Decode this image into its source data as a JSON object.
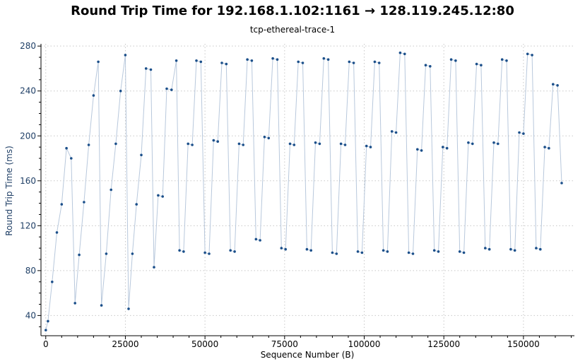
{
  "colors": {
    "points": "#1b4f8a",
    "line": "#b8c8dc",
    "ylabel": "#1f3f66"
  },
  "chart_data": {
    "type": "scatter",
    "title": "Round Trip Time for 192.168.1.102:1161 → 128.119.245.12:80",
    "subtitle": "tcp-ethereal-trace-1",
    "xlabel": "Sequence Number (B)",
    "ylabel": "Round Trip Time (ms)",
    "xlim": [
      -1500,
      166000
    ],
    "ylim": [
      22,
      282
    ],
    "xticks": [
      0,
      25000,
      50000,
      75000,
      100000,
      125000,
      150000
    ],
    "yticks": [
      40,
      80,
      120,
      160,
      200,
      240,
      280
    ],
    "grid": true,
    "series": [
      {
        "points": [
          [
            0,
            27
          ],
          [
            700,
            35
          ],
          [
            2000,
            70
          ],
          [
            3500,
            114
          ],
          [
            5000,
            139
          ],
          [
            6500,
            189
          ],
          [
            8000,
            180
          ],
          [
            9200,
            51
          ],
          [
            10500,
            94
          ],
          [
            12000,
            141
          ],
          [
            13500,
            192
          ],
          [
            15000,
            236
          ],
          [
            16500,
            266
          ],
          [
            17500,
            49
          ],
          [
            19000,
            95
          ],
          [
            20500,
            152
          ],
          [
            22000,
            193
          ],
          [
            23500,
            240
          ],
          [
            25000,
            272
          ],
          [
            26000,
            46
          ],
          [
            27200,
            95
          ],
          [
            28500,
            139
          ],
          [
            30000,
            183
          ],
          [
            31500,
            260
          ],
          [
            33000,
            259
          ],
          [
            34000,
            83
          ],
          [
            35300,
            147
          ],
          [
            36700,
            146
          ],
          [
            38000,
            242
          ],
          [
            39500,
            241
          ],
          [
            41000,
            267
          ],
          [
            42000,
            98
          ],
          [
            43300,
            97
          ],
          [
            44700,
            193
          ],
          [
            46000,
            192
          ],
          [
            47300,
            267
          ],
          [
            48700,
            266
          ],
          [
            50000,
            96
          ],
          [
            51300,
            95
          ],
          [
            52700,
            196
          ],
          [
            54000,
            195
          ],
          [
            55300,
            265
          ],
          [
            56700,
            264
          ],
          [
            58000,
            98
          ],
          [
            59300,
            97
          ],
          [
            60700,
            193
          ],
          [
            62000,
            192
          ],
          [
            63300,
            268
          ],
          [
            64700,
            267
          ],
          [
            66000,
            108
          ],
          [
            67300,
            107
          ],
          [
            68700,
            199
          ],
          [
            70000,
            198
          ],
          [
            71300,
            269
          ],
          [
            72700,
            268
          ],
          [
            74000,
            100
          ],
          [
            75300,
            99
          ],
          [
            76700,
            193
          ],
          [
            78000,
            192
          ],
          [
            79300,
            266
          ],
          [
            80700,
            265
          ],
          [
            82000,
            99
          ],
          [
            83300,
            98
          ],
          [
            84700,
            194
          ],
          [
            86000,
            193
          ],
          [
            87300,
            269
          ],
          [
            88700,
            268
          ],
          [
            90000,
            96
          ],
          [
            91300,
            95
          ],
          [
            92700,
            193
          ],
          [
            94000,
            192
          ],
          [
            95300,
            266
          ],
          [
            96700,
            265
          ],
          [
            98000,
            97
          ],
          [
            99300,
            96
          ],
          [
            100700,
            191
          ],
          [
            102000,
            190
          ],
          [
            103300,
            266
          ],
          [
            104700,
            265
          ],
          [
            106000,
            98
          ],
          [
            107300,
            97
          ],
          [
            108700,
            204
          ],
          [
            110000,
            203
          ],
          [
            111300,
            274
          ],
          [
            112700,
            273
          ],
          [
            114000,
            96
          ],
          [
            115300,
            95
          ],
          [
            116700,
            188
          ],
          [
            118000,
            187
          ],
          [
            119300,
            263
          ],
          [
            120700,
            262
          ],
          [
            122000,
            98
          ],
          [
            123300,
            97
          ],
          [
            124700,
            190
          ],
          [
            126000,
            189
          ],
          [
            127300,
            268
          ],
          [
            128700,
            267
          ],
          [
            130000,
            97
          ],
          [
            131300,
            96
          ],
          [
            132700,
            194
          ],
          [
            134000,
            193
          ],
          [
            135300,
            264
          ],
          [
            136700,
            263
          ],
          [
            138000,
            100
          ],
          [
            139300,
            99
          ],
          [
            140700,
            194
          ],
          [
            142000,
            193
          ],
          [
            143300,
            268
          ],
          [
            144700,
            267
          ],
          [
            146000,
            99
          ],
          [
            147300,
            98
          ],
          [
            148700,
            203
          ],
          [
            150000,
            202
          ],
          [
            151300,
            273
          ],
          [
            152700,
            272
          ],
          [
            154000,
            100
          ],
          [
            155300,
            99
          ],
          [
            156700,
            190
          ],
          [
            158000,
            189
          ],
          [
            159300,
            246
          ],
          [
            160700,
            245
          ],
          [
            162000,
            158
          ]
        ]
      }
    ]
  }
}
